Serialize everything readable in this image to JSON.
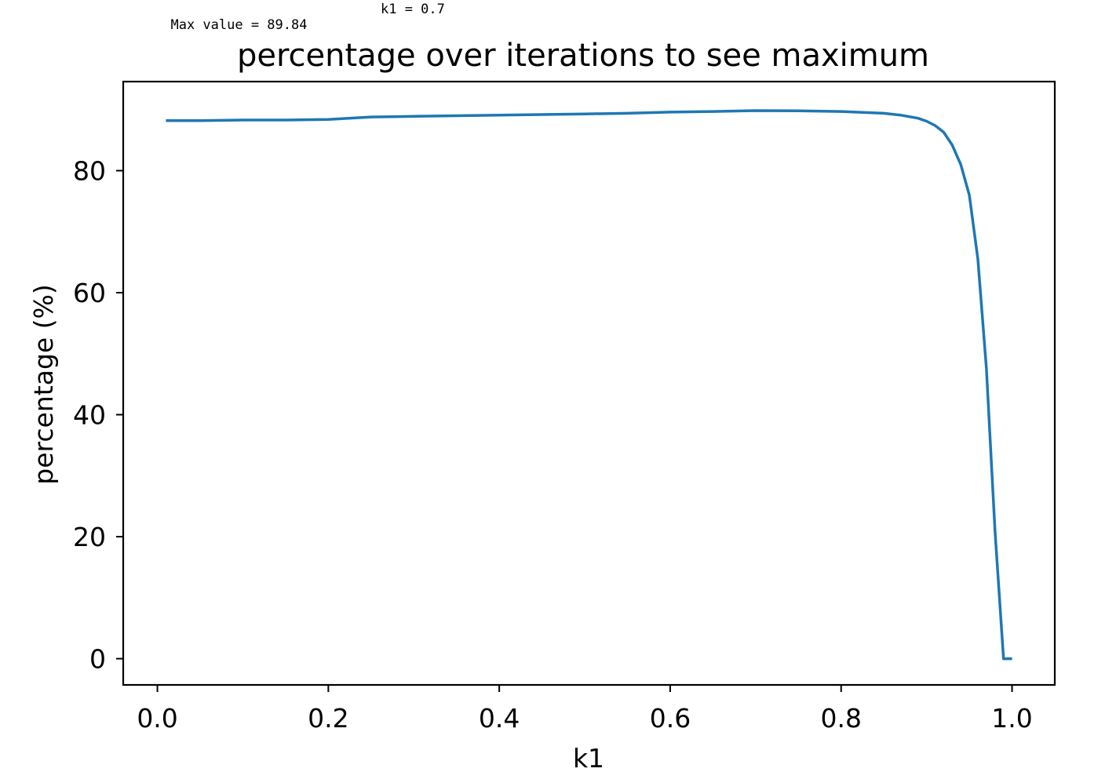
{
  "output": {
    "max_value_text": "Max value = 89.84",
    "k1_text": "k1 = 0.7"
  },
  "chart_data": {
    "type": "line",
    "title": "percentage over iterations to see maximum",
    "xlabel": "k1",
    "ylabel": "percentage (%)",
    "xlim": [
      -0.04,
      1.05
    ],
    "ylim": [
      -4.3,
      94.6
    ],
    "xticks": [
      0.0,
      0.2,
      0.4,
      0.6,
      0.8,
      1.0
    ],
    "xtick_labels": [
      "0.0",
      "0.2",
      "0.4",
      "0.6",
      "0.8",
      "1.0"
    ],
    "yticks": [
      0,
      20,
      40,
      60,
      80
    ],
    "ytick_labels": [
      "0",
      "20",
      "40",
      "60",
      "80"
    ],
    "grid": false,
    "series": [
      {
        "color": "#1f77b4",
        "x": [
          0.01,
          0.05,
          0.1,
          0.15,
          0.2,
          0.25,
          0.3,
          0.35,
          0.4,
          0.45,
          0.5,
          0.55,
          0.6,
          0.65,
          0.7,
          0.75,
          0.8,
          0.85,
          0.87,
          0.89,
          0.9,
          0.91,
          0.92,
          0.93,
          0.94,
          0.95,
          0.96,
          0.97,
          0.98,
          0.99,
          1.0
        ],
        "y": [
          88.2,
          88.2,
          88.3,
          88.3,
          88.4,
          88.8,
          88.9,
          89.0,
          89.1,
          89.2,
          89.3,
          89.4,
          89.6,
          89.7,
          89.84,
          89.8,
          89.7,
          89.4,
          89.1,
          88.6,
          88.1,
          87.4,
          86.3,
          84.2,
          81.0,
          76.0,
          65.5,
          47.5,
          21.0,
          0.0,
          0.0
        ]
      }
    ]
  }
}
